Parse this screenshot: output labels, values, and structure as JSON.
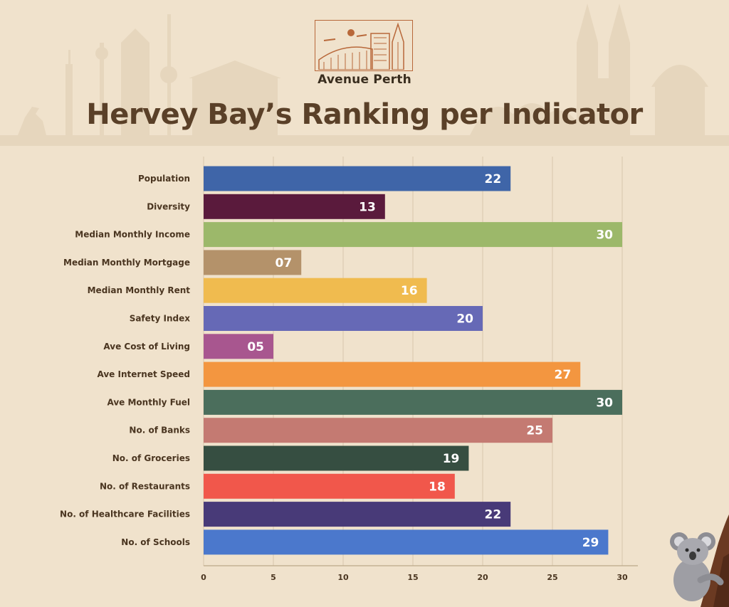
{
  "brand": {
    "name": "Avenue Perth",
    "accent": "#b8683a"
  },
  "title": "Hervey Bay’s Ranking per Indicator",
  "chart_data": {
    "type": "bar",
    "orientation": "horizontal",
    "title": "Hervey Bay’s Ranking per Indicator",
    "categories": [
      "Population",
      "Diversity",
      "Median Monthly Income",
      "Median Monthly Mortgage",
      "Median Monthly Rent",
      "Safety Index",
      "Ave Cost of Living",
      "Ave Internet Speed",
      "Ave Monthly Fuel",
      "No. of Banks",
      "No. of Groceries",
      "No. of Restaurants",
      "No. of Healthcare Facilities",
      "No. of Schools"
    ],
    "values": [
      22,
      13,
      30,
      7,
      16,
      20,
      5,
      27,
      30,
      25,
      19,
      18,
      22,
      29
    ],
    "value_labels": [
      "22",
      "13",
      "30",
      "07",
      "16",
      "20",
      "05",
      "27",
      "30",
      "25",
      "19",
      "18",
      "22",
      "29"
    ],
    "colors": [
      "#3f65a8",
      "#5a1a3c",
      "#9cb86a",
      "#b4926a",
      "#f0bb4f",
      "#6669b6",
      "#a8568f",
      "#f39640",
      "#4b6e5c",
      "#c47a72",
      "#364e41",
      "#f1574b",
      "#483a78",
      "#4b78cc"
    ],
    "xlim": [
      0,
      30
    ],
    "xticks": [
      0,
      5,
      10,
      15,
      20,
      25,
      30
    ],
    "grid": true,
    "xlabel": "",
    "ylabel": ""
  }
}
